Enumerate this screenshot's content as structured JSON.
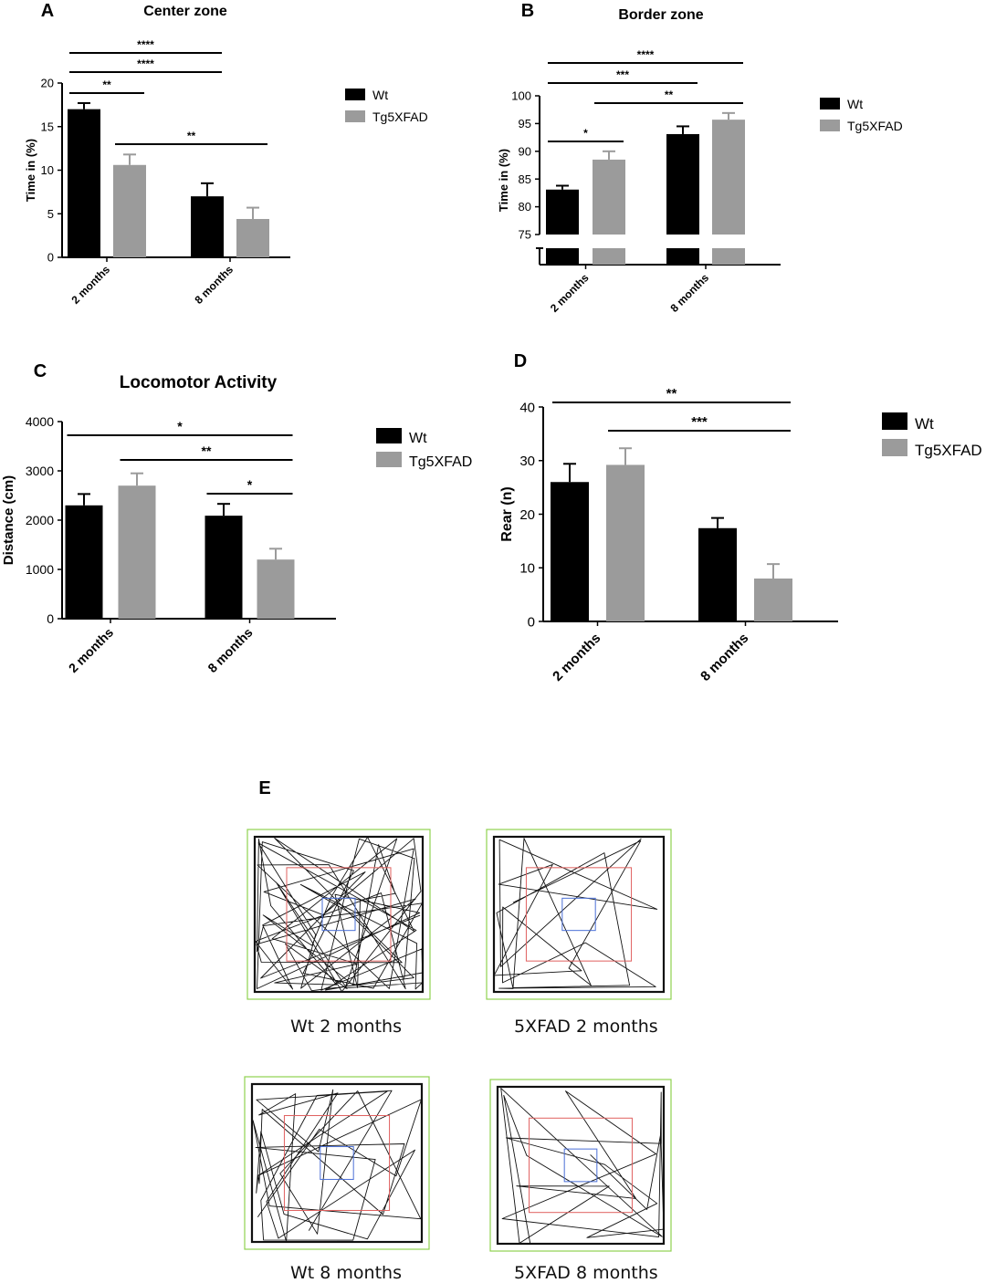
{
  "colors": {
    "wt": "#000000",
    "tg": "#9b9b9b",
    "axis": "#000000"
  },
  "chart_data": [
    {
      "panel": "A",
      "type": "bar",
      "title": "Center zone",
      "xlabel": "",
      "ylabel": "Time in (%)",
      "ylim": [
        0,
        20
      ],
      "yticks": [
        "0",
        "5",
        "10",
        "15",
        "20"
      ],
      "categories": [
        "2 months",
        "8 months"
      ],
      "series": [
        {
          "name": "Wt",
          "values": [
            17.0,
            7.0
          ],
          "errors": [
            0.7,
            1.5
          ]
        },
        {
          "name": "Tg5XFAD",
          "values": [
            10.6,
            4.4
          ],
          "errors": [
            1.2,
            1.3
          ]
        }
      ],
      "legend": "right",
      "significance": [
        {
          "label": "****",
          "from": [
            0,
            0
          ],
          "to": [
            1,
            0
          ]
        },
        {
          "label": "****",
          "from": [
            0,
            0
          ],
          "to": [
            1,
            0
          ]
        },
        {
          "label": "**",
          "from": [
            0,
            0
          ],
          "to": [
            0,
            1
          ]
        },
        {
          "label": "**",
          "from": [
            0,
            1
          ],
          "to": [
            1,
            1
          ]
        }
      ]
    },
    {
      "panel": "B",
      "type": "bar",
      "title": "Border zone",
      "xlabel": "",
      "ylabel": "Time in (%)",
      "ylim": [
        75,
        100
      ],
      "axis_break": true,
      "yticks": [
        "75",
        "80",
        "85",
        "90",
        "95",
        "100"
      ],
      "categories": [
        "2 months",
        "8 months"
      ],
      "series": [
        {
          "name": "Wt",
          "values": [
            83.1,
            93.1
          ],
          "errors": [
            0.7,
            1.4
          ]
        },
        {
          "name": "Tg5XFAD",
          "values": [
            88.5,
            95.7
          ],
          "errors": [
            1.5,
            1.2
          ]
        }
      ],
      "legend": "right",
      "significance": [
        {
          "label": "****",
          "from": [
            0,
            0
          ],
          "to": [
            1,
            1
          ]
        },
        {
          "label": "***",
          "from": [
            0,
            0
          ],
          "to": [
            1,
            0
          ]
        },
        {
          "label": "**",
          "from": [
            0,
            1
          ],
          "to": [
            1,
            1
          ]
        },
        {
          "label": "*",
          "from": [
            0,
            0
          ],
          "to": [
            0,
            1
          ]
        }
      ]
    },
    {
      "panel": "C",
      "type": "bar",
      "title": "Locomotor Activity",
      "xlabel": "",
      "ylabel": "Distance (cm)",
      "ylim": [
        0,
        4000
      ],
      "yticks": [
        "0",
        "1000",
        "2000",
        "3000",
        "4000"
      ],
      "categories": [
        "2 months",
        "8 months"
      ],
      "series": [
        {
          "name": "Wt",
          "values": [
            2300,
            2090
          ],
          "errors": [
            230,
            240
          ]
        },
        {
          "name": "Tg5XFAD",
          "values": [
            2700,
            1200
          ],
          "errors": [
            250,
            220
          ]
        }
      ],
      "legend": "right",
      "significance": [
        {
          "label": "*",
          "from": [
            0,
            0
          ],
          "to": [
            1,
            1
          ]
        },
        {
          "label": "**",
          "from": [
            0,
            1
          ],
          "to": [
            1,
            1
          ]
        },
        {
          "label": "*",
          "from": [
            1,
            0
          ],
          "to": [
            1,
            1
          ]
        }
      ]
    },
    {
      "panel": "D",
      "type": "bar",
      "title": "",
      "xlabel": "",
      "ylabel": "Rear (n)",
      "ylim": [
        0,
        40
      ],
      "yticks": [
        "0",
        "10",
        "20",
        "30",
        "40"
      ],
      "categories": [
        "2 months",
        "8 months"
      ],
      "series": [
        {
          "name": "Wt",
          "values": [
            26.0,
            17.4
          ],
          "errors": [
            3.4,
            1.9
          ]
        },
        {
          "name": "Tg5XFAD",
          "values": [
            29.2,
            8.0
          ],
          "errors": [
            3.1,
            2.7
          ]
        }
      ],
      "legend": "right",
      "significance": [
        {
          "label": "**",
          "from": [
            0,
            0
          ],
          "to": [
            1,
            1
          ]
        },
        {
          "label": "***",
          "from": [
            0,
            1
          ],
          "to": [
            1,
            1
          ]
        }
      ]
    }
  ],
  "panel_e": {
    "label": "E",
    "tracks": [
      {
        "caption": "Wt 2 months",
        "density": "high"
      },
      {
        "caption": "5XFAD 2 months",
        "density": "low"
      },
      {
        "caption": "Wt 8 months",
        "density": "medium"
      },
      {
        "caption": "5XFAD 8 months",
        "density": "low"
      }
    ]
  }
}
